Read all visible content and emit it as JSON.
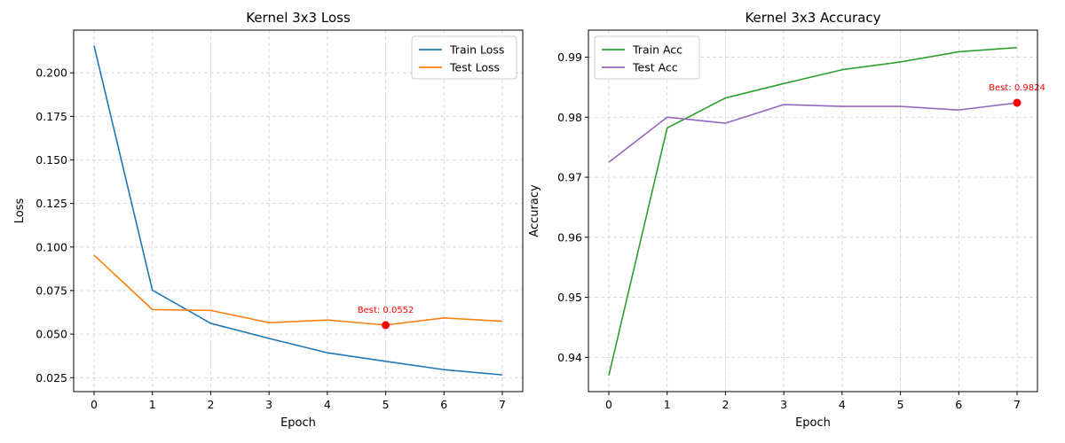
{
  "chart_data": [
    {
      "type": "line",
      "title": "Kernel 3x3 Loss",
      "xlabel": "Epoch",
      "ylabel": "Loss",
      "x": [
        0,
        1,
        2,
        3,
        4,
        5,
        6,
        7
      ],
      "xticks": [
        0,
        1,
        2,
        3,
        4,
        5,
        6,
        7
      ],
      "xlim": [
        -0.35,
        7.35
      ],
      "yticks": [
        0.025,
        0.05,
        0.075,
        0.1,
        0.125,
        0.15,
        0.175,
        0.2
      ],
      "ytick_labels": [
        "0.025",
        "0.050",
        "0.075",
        "0.100",
        "0.125",
        "0.150",
        "0.175",
        "0.200"
      ],
      "ylim": [
        0.017,
        0.2245
      ],
      "grid": true,
      "legend_position": "top-right",
      "series": [
        {
          "name": "Train Loss",
          "color": "#1f77b4",
          "values": [
            0.2155,
            0.0752,
            0.0562,
            0.0475,
            0.0393,
            0.0344,
            0.0296,
            0.0266
          ]
        },
        {
          "name": "Test Loss",
          "color": "#ff7f0e",
          "values": [
            0.0953,
            0.0641,
            0.0636,
            0.0566,
            0.0581,
            0.0552,
            0.0593,
            0.0574
          ]
        }
      ],
      "annotations": [
        {
          "x": 5,
          "y": 0.0552,
          "text": "Best: 0.0552",
          "color": "#ff0000"
        }
      ]
    },
    {
      "type": "line",
      "title": "Kernel 3x3 Accuracy",
      "xlabel": "Epoch",
      "ylabel": "Accuracy",
      "x": [
        0,
        1,
        2,
        3,
        4,
        5,
        6,
        7
      ],
      "xticks": [
        0,
        1,
        2,
        3,
        4,
        5,
        6,
        7
      ],
      "xlim": [
        -0.35,
        7.35
      ],
      "yticks": [
        0.94,
        0.95,
        0.96,
        0.97,
        0.98,
        0.99
      ],
      "ytick_labels": [
        "0.94",
        "0.95",
        "0.96",
        "0.97",
        "0.98",
        "0.99"
      ],
      "ylim": [
        0.9343,
        0.9945
      ],
      "grid": true,
      "legend_position": "top-left",
      "series": [
        {
          "name": "Train Acc",
          "color": "#2ca02c",
          "values": [
            0.937,
            0.9782,
            0.9832,
            0.9856,
            0.9879,
            0.9892,
            0.9909,
            0.9916
          ]
        },
        {
          "name": "Test Acc",
          "color": "#9467bd",
          "values": [
            0.9725,
            0.98,
            0.979,
            0.9821,
            0.9818,
            0.9818,
            0.9812,
            0.9824
          ]
        }
      ],
      "annotations": [
        {
          "x": 7,
          "y": 0.9824,
          "text": "Best: 0.9824",
          "color": "#ff0000"
        }
      ]
    }
  ]
}
